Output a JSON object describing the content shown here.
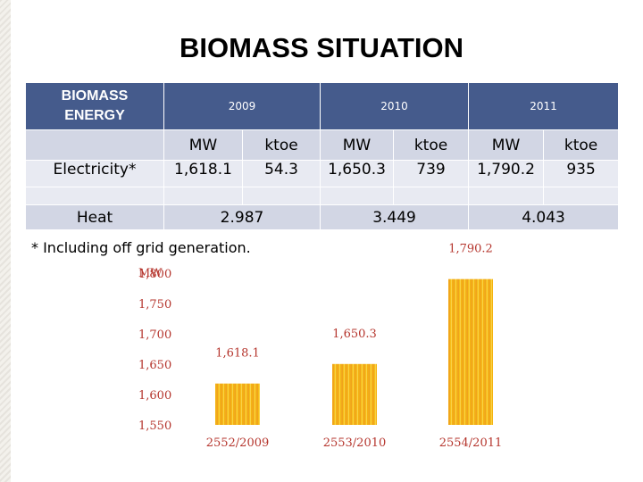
{
  "title": "BIOMASS SITUATION",
  "table": {
    "corner": [
      "BIOMASS",
      "ENERGY"
    ],
    "years": [
      "2009",
      "2010",
      "2011"
    ],
    "units": [
      "MW",
      "ktoe",
      "MW",
      "ktoe",
      "MW",
      "ktoe"
    ],
    "electricity": {
      "label": "Electricity*",
      "values": [
        "1,618.1",
        "54.3",
        "1,650.3",
        "739",
        "1,790.2",
        "935"
      ]
    },
    "heat": {
      "label": "Heat",
      "values": [
        "2.987",
        "3.449",
        "4.043"
      ]
    }
  },
  "footnote": "* Including off grid generation.",
  "colors": {
    "header": "#455b8c",
    "bar": "#f2a81e",
    "label": "#b5352d"
  },
  "chart_data": {
    "type": "bar",
    "categories": [
      "2552/2009",
      "2553/2010",
      "2554/2011"
    ],
    "values": [
      1618.1,
      1650.3,
      1790.2
    ],
    "data_labels": [
      "1,618.1",
      "1,650.3",
      "1,790.2"
    ],
    "ylim": [
      1550,
      1800
    ],
    "yticks": [
      "1,800",
      "1,750",
      "1,700",
      "1,650",
      "1,600",
      "1,550"
    ],
    "ylabel": "MW",
    "grid": false
  }
}
